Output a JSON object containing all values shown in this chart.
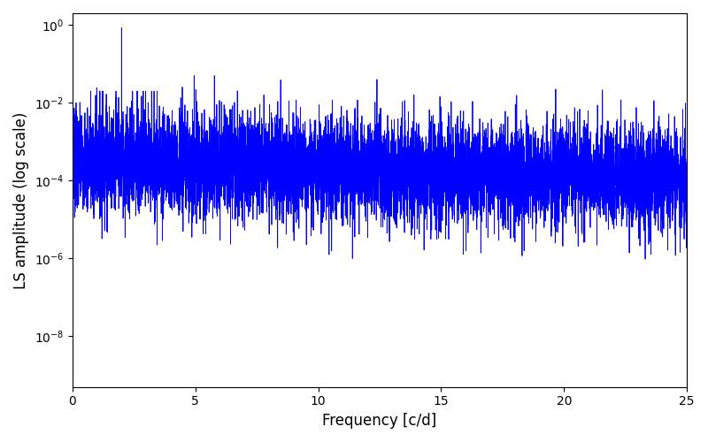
{
  "title": "",
  "xlabel": "Frequency [c/d]",
  "ylabel": "LS amplitude (log scale)",
  "line_color": "#0000ff",
  "line_width": 0.6,
  "xlim": [
    0,
    25
  ],
  "ylim_bottom": 5e-10,
  "ylim_top": 2.0,
  "freq_min": 0.005,
  "freq_max": 24.99,
  "n_points": 8000,
  "figsize": [
    8.0,
    5.0
  ],
  "dpi": 100,
  "spike_freq": 2.0,
  "spike_amplitude": 0.85,
  "background_color": "#ffffff",
  "seed": 7
}
